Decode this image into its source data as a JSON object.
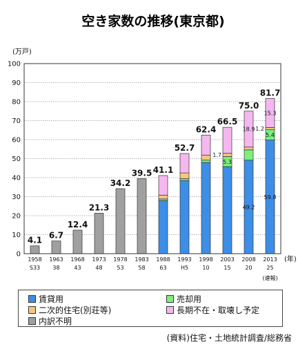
{
  "chart_data": {
    "type": "bar",
    "stacked": true,
    "title": "空き家数の推移(東京都)",
    "ylabel": "(万戸)",
    "xlabel": "(年)",
    "ylim": [
      0,
      100
    ],
    "yticks": [
      0,
      10,
      20,
      30,
      40,
      50,
      60,
      70,
      80,
      90,
      100
    ],
    "grid": true,
    "categories": [
      {
        "year": "1958",
        "era": "S33"
      },
      {
        "year": "1963",
        "era": "38"
      },
      {
        "year": "1968",
        "era": "43"
      },
      {
        "year": "1973",
        "era": "48"
      },
      {
        "year": "1978",
        "era": "53"
      },
      {
        "year": "1983",
        "era": "58"
      },
      {
        "year": "1988",
        "era": "63"
      },
      {
        "year": "1993",
        "era": "H5"
      },
      {
        "year": "1998",
        "era": "10"
      },
      {
        "year": "2003",
        "era": "15"
      },
      {
        "year": "2008",
        "era": "20"
      },
      {
        "year": "2013",
        "era": "25"
      }
    ],
    "note_last": "(速報)",
    "totals": [
      "4.1",
      "6.7",
      "12.4",
      "21.3",
      "34.2",
      "39.5",
      "41.1",
      "52.7",
      "62.4",
      "66.5",
      "75.0",
      "81.7"
    ],
    "series": [
      {
        "name": "賃貸用",
        "color": "#3d8ee6",
        "values": [
          null,
          null,
          null,
          null,
          null,
          null,
          28.0,
          38.5,
          48.0,
          45.8,
          49.2,
          59.8
        ]
      },
      {
        "name": "売却用",
        "color": "#7cf07c",
        "values": [
          null,
          null,
          null,
          null,
          null,
          null,
          0.8,
          1.0,
          1.2,
          5.3,
          5.4,
          5.4
        ]
      },
      {
        "name": "二次的住宅(別荘等)",
        "color": "#f5c77e",
        "values": [
          null,
          null,
          null,
          null,
          null,
          null,
          2.0,
          3.0,
          2.6,
          1.7,
          1.5,
          1.2
        ]
      },
      {
        "name": "長期不在・取壊し予定",
        "color": "#f4b8ef",
        "values": [
          null,
          null,
          null,
          null,
          null,
          null,
          10.3,
          10.2,
          10.6,
          13.7,
          18.9,
          15.3
        ]
      },
      {
        "name": "内訳不明",
        "color": "#a0a0a0",
        "values": [
          4.1,
          6.7,
          12.4,
          21.3,
          34.2,
          39.5,
          null,
          null,
          null,
          null,
          null,
          null
        ]
      }
    ],
    "segment_labels": [
      {
        "category": 9,
        "series": 1,
        "text": "5.3"
      },
      {
        "category": 9,
        "series": 2,
        "text": "1.7"
      },
      {
        "category": 10,
        "series": 0,
        "text": "49.2"
      },
      {
        "category": 10,
        "series": 3,
        "text": "18.9"
      },
      {
        "category": 11,
        "series": 0,
        "text": "59.8"
      },
      {
        "category": 11,
        "series": 1,
        "text": "5.4"
      },
      {
        "category": 11,
        "series": 2,
        "text": "1.2"
      },
      {
        "category": 11,
        "series": 3,
        "text": "15.3"
      }
    ]
  },
  "legend": [
    {
      "label": "賃貸用",
      "color": "#3d8ee6"
    },
    {
      "label": "売却用",
      "color": "#7cf07c"
    },
    {
      "label": "二次的住宅(別荘等)",
      "color": "#f5c77e"
    },
    {
      "label": "長期不在・取壊し予定",
      "color": "#f4b8ef"
    },
    {
      "label": "内訳不明",
      "color": "#a0a0a0"
    }
  ],
  "source": "(資料)住宅・土地統計調査/総務省"
}
